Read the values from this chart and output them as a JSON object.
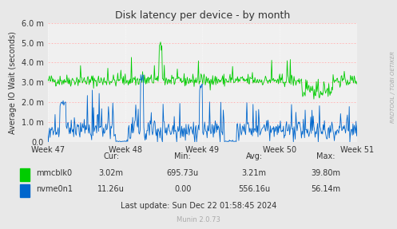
{
  "title": "Disk latency per device - by month",
  "ylabel": "Average IO Wait (seconds)",
  "xtick_labels": [
    "Week 47",
    "Week 48",
    "Week 49",
    "Week 50",
    "Week 51"
  ],
  "ytick_labels": [
    "0.0",
    "1.0 m",
    "2.0 m",
    "3.0 m",
    "4.0 m",
    "5.0 m",
    "6.0 m"
  ],
  "ytick_values": [
    0.0,
    0.001,
    0.002,
    0.003,
    0.004,
    0.005,
    0.006
  ],
  "ylim": [
    0.0,
    0.006
  ],
  "bg_color": "#e8e8e8",
  "plot_bg_color": "#f0f0f0",
  "grid_color": "#ffffff",
  "hline_color": "#ff9999",
  "mmcblk0_color": "#00cc00",
  "nvme0n1_color": "#0066cc",
  "legend_entries": [
    {
      "label": "mmcblk0",
      "color": "#00cc00"
    },
    {
      "label": "nvme0n1",
      "color": "#0066cc"
    }
  ],
  "stats_header": [
    "Cur:",
    "Min:",
    "Avg:",
    "Max:"
  ],
  "stats_mmcblk0": [
    "3.02m",
    "695.73u",
    "3.21m",
    "39.80m"
  ],
  "stats_nvme0n1": [
    "11.26u",
    "0.00",
    "556.16u",
    "56.14m"
  ],
  "last_update": "Last update: Sun Dec 22 01:58:45 2024",
  "munin_version": "Munin 2.0.73",
  "rrdtool_label": "RRDTOOL / TOBI OETIKER",
  "n_points": 500,
  "seed": 42
}
